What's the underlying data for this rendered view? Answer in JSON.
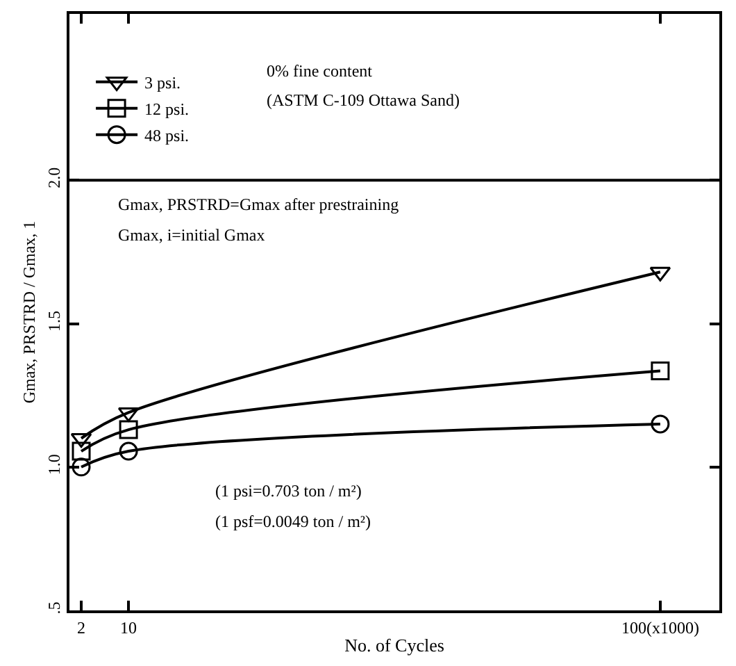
{
  "chart_data": {
    "type": "line",
    "xlabel": "No. of Cycles",
    "ylabel": "Gmax, PRSTRD / Gmax, 1",
    "x": [
      2,
      10,
      100
    ],
    "series": [
      {
        "name": "3 psi.",
        "color": "#000000",
        "marker": "triangle",
        "values": [
          1.1,
          1.19,
          1.68
        ]
      },
      {
        "name": "12 psi.",
        "color": "#000000",
        "marker": "square",
        "values": [
          1.055,
          1.13,
          1.335
        ]
      },
      {
        "name": "48 psi.",
        "color": "#000000",
        "marker": "circle",
        "values": [
          1.0,
          1.055,
          1.15
        ]
      }
    ],
    "xlim": [
      0,
      110
    ],
    "xticks": [
      2,
      10,
      {
        "value": 100,
        "label": "100(x1000)"
      }
    ],
    "ylim": [
      0.5,
      2.58
    ],
    "yticks": [
      {
        "value": 0.5,
        "label": ".5"
      },
      {
        "value": 1.0,
        "label": "1.0"
      },
      {
        "value": 1.5,
        "label": "1.5"
      },
      {
        "value": 2.0,
        "label": "2.0"
      }
    ],
    "ref_lines": [
      {
        "axis": "y",
        "value": 2.0,
        "color": "#000000"
      }
    ],
    "annotations": [
      "0% fine content",
      "(ASTM C-109 Ottawa Sand)",
      "Gmax, PRSTRD=Gmax after prestraining",
      "Gmax, i=initial Gmax",
      "(1 psi=0.703 ton / m²)",
      "(1 psf=0.0049 ton / m²)"
    ],
    "legend": "top left",
    "line_style": "solid"
  }
}
